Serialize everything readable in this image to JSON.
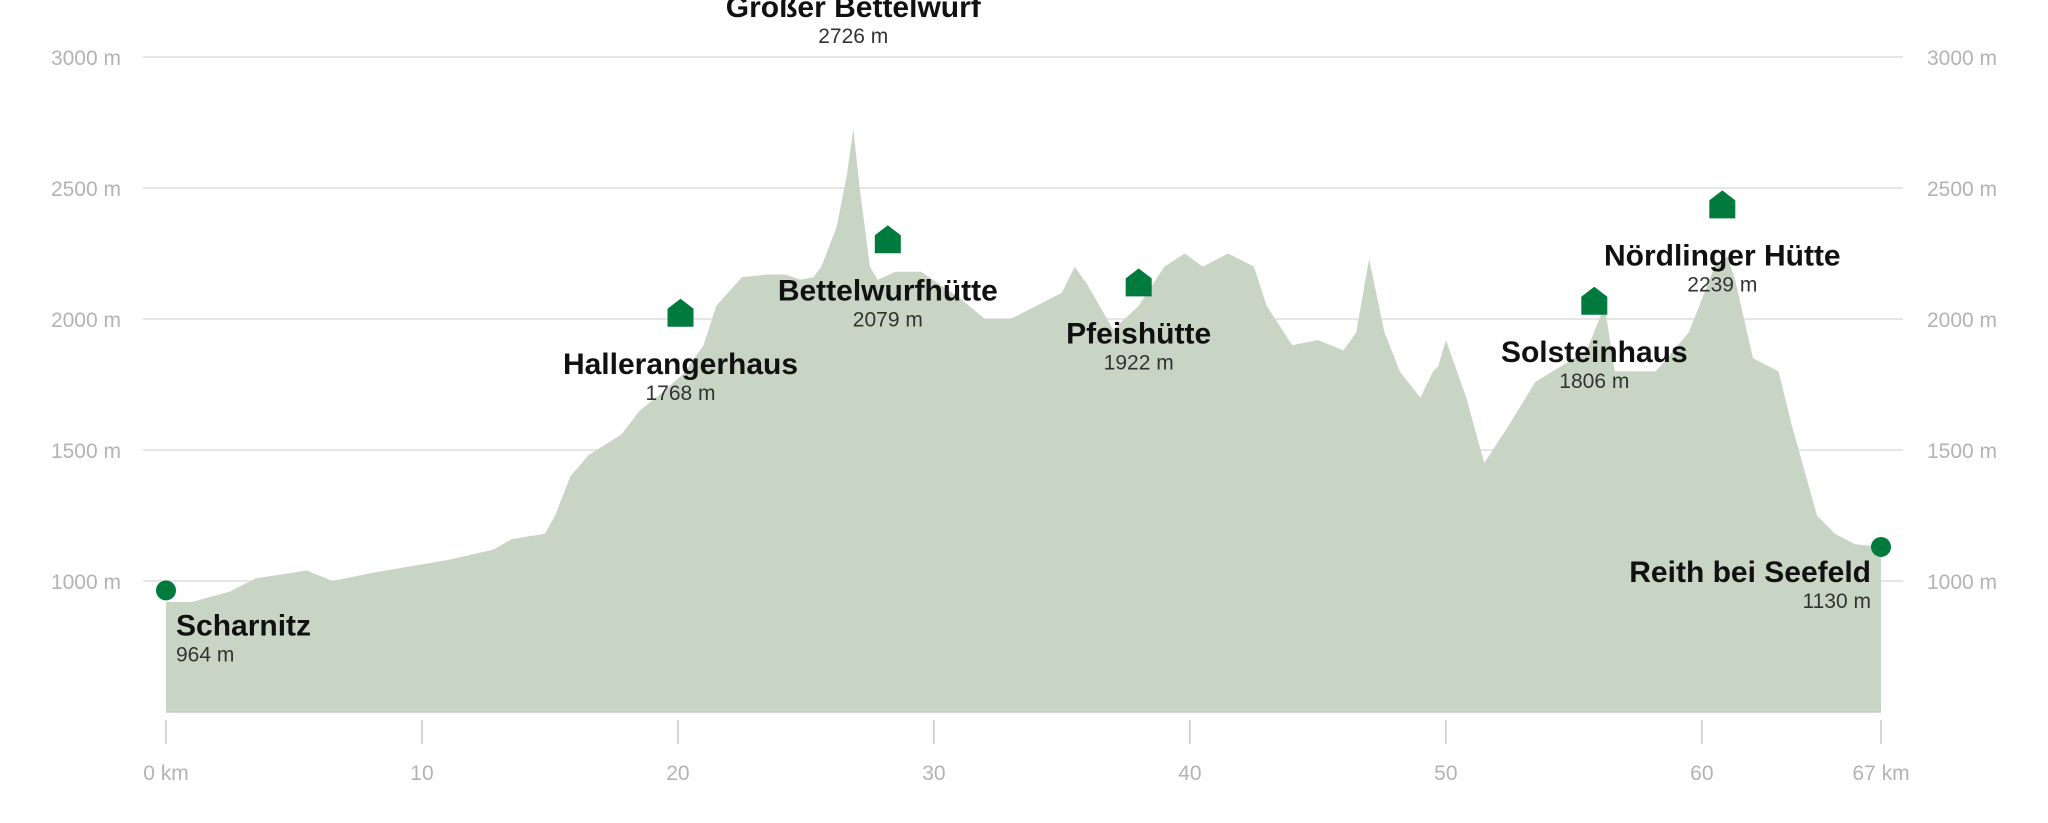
{
  "chart_data": {
    "type": "area",
    "y_unit": "m",
    "x_unit": "km",
    "xlim": [
      0,
      67
    ],
    "ylim": [
      500,
      3000
    ],
    "y_ticks": [
      {
        "value": 1000,
        "label": "1000 m"
      },
      {
        "value": 1500,
        "label": "1500 m"
      },
      {
        "value": 2000,
        "label": "2000 m"
      },
      {
        "value": 2500,
        "label": "2500 m"
      },
      {
        "value": 3000,
        "label": "3000 m"
      }
    ],
    "x_ticks": [
      {
        "value": 0,
        "label": "0 km"
      },
      {
        "value": 10,
        "label": "10"
      },
      {
        "value": 20,
        "label": "20"
      },
      {
        "value": 30,
        "label": "30"
      },
      {
        "value": 40,
        "label": "40"
      },
      {
        "value": 50,
        "label": "50"
      },
      {
        "value": 60,
        "label": "60"
      },
      {
        "value": 67,
        "label": "67 km"
      }
    ],
    "grid": true,
    "colors": {
      "area": "#c8d5c5",
      "marker": "#007a3d",
      "grid": "#dddddd",
      "baseline": "#c8c8c8"
    },
    "profile": {
      "x": [
        0,
        1,
        2.5,
        3.5,
        5.5,
        6.5,
        8,
        11,
        12.8,
        13.5,
        14.8,
        15.2,
        15.8,
        16.5,
        17.8,
        18.5,
        19.4,
        20.2,
        21,
        21.5,
        22.5,
        23.5,
        24.2,
        24.8,
        25.3,
        25.6,
        26.2,
        26.6,
        26.85,
        27.1,
        27.5,
        27.8,
        28.5,
        29.5,
        31,
        32,
        33,
        34,
        35,
        35.5,
        36,
        37,
        38,
        39,
        39.8,
        40.5,
        41.5,
        42.5,
        43,
        44,
        45,
        46,
        46.5,
        47,
        47.6,
        48.2,
        49,
        49.5,
        49.7,
        50,
        50.8,
        51.5,
        52.5,
        53.5,
        54.5,
        55.5,
        56.2,
        56.6,
        57,
        57.5,
        58.2,
        59.5,
        60.5,
        61,
        61.3,
        62,
        63,
        63.5,
        64.5,
        65.2,
        66,
        67
      ],
      "y": [
        920,
        920,
        960,
        1010,
        1040,
        1000,
        1030,
        1080,
        1120,
        1160,
        1180,
        1250,
        1400,
        1480,
        1560,
        1650,
        1720,
        1790,
        1900,
        2050,
        2160,
        2170,
        2170,
        2150,
        2160,
        2200,
        2350,
        2550,
        2726,
        2500,
        2200,
        2150,
        2180,
        2180,
        2080,
        2000,
        2000,
        2050,
        2100,
        2200,
        2130,
        1960,
        2050,
        2200,
        2250,
        2200,
        2250,
        2200,
        2050,
        1900,
        1920,
        1880,
        1950,
        2230,
        1950,
        1800,
        1700,
        1800,
        1820,
        1920,
        1700,
        1450,
        1600,
        1760,
        1820,
        1880,
        2050,
        1800,
        1800,
        1800,
        1800,
        1950,
        2200,
        2239,
        2150,
        1850,
        1800,
        1600,
        1250,
        1180,
        1140,
        1130
      ]
    },
    "waypoints": [
      {
        "name": "Scharnitz",
        "elevation_label": "964 m",
        "km": 0,
        "elevation": 964,
        "kind": "endpoint"
      },
      {
        "name": "Hallerangerhaus",
        "elevation_label": "1768 m",
        "km": 20.1,
        "elevation": 1768,
        "kind": "hut"
      },
      {
        "name": "Großer Bettelwurf",
        "elevation_label": "2726 m",
        "km": 26.85,
        "elevation": 2726,
        "kind": "peak"
      },
      {
        "name": "Bettelwurfhütte",
        "elevation_label": "2079 m",
        "km": 28.2,
        "elevation": 2079,
        "kind": "hut"
      },
      {
        "name": "Pfeishütte",
        "elevation_label": "1922 m",
        "km": 38.0,
        "elevation": 1922,
        "kind": "hut"
      },
      {
        "name": "Solsteinhaus",
        "elevation_label": "1806 m",
        "km": 55.8,
        "elevation": 1806,
        "kind": "hut"
      },
      {
        "name": "Nördlinger Hütte",
        "elevation_label": "2239 m",
        "km": 60.8,
        "elevation": 2239,
        "kind": "hut"
      },
      {
        "name": "Reith bei Seefeld",
        "elevation_label": "1130 m",
        "km": 67,
        "elevation": 1130,
        "kind": "endpoint"
      }
    ]
  }
}
